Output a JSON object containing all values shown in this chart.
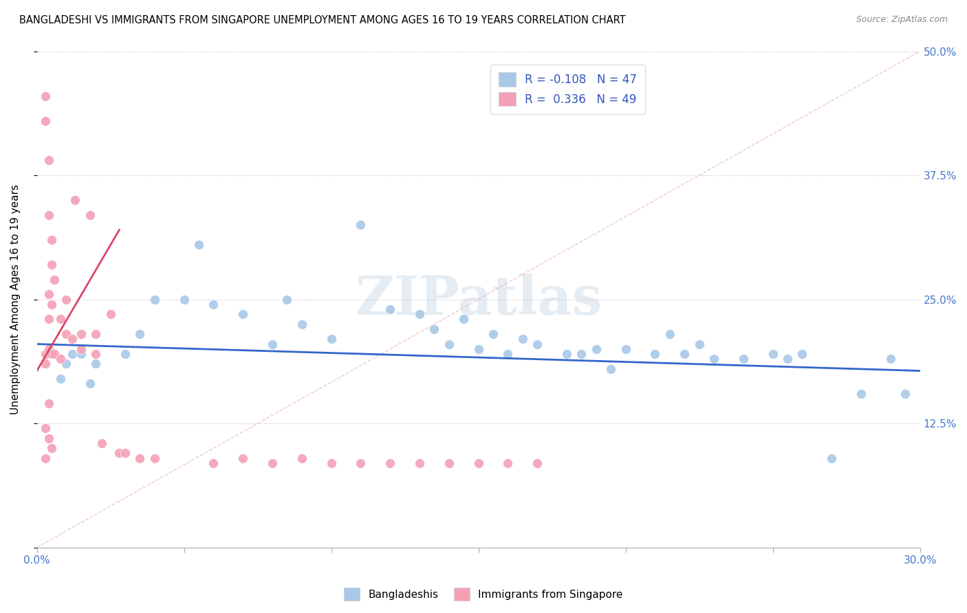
{
  "title": "BANGLADESHI VS IMMIGRANTS FROM SINGAPORE UNEMPLOYMENT AMONG AGES 16 TO 19 YEARS CORRELATION CHART",
  "source": "Source: ZipAtlas.com",
  "ylabel": "Unemployment Among Ages 16 to 19 years",
  "x_min": 0.0,
  "x_max": 0.3,
  "y_min": 0.0,
  "y_max": 0.5,
  "blue_R": -0.108,
  "blue_N": 47,
  "pink_R": 0.336,
  "pink_N": 49,
  "blue_color": "#a8c8e8",
  "pink_color": "#f4a0b5",
  "blue_line_color": "#3366cc",
  "pink_line_color": "#dd4466",
  "legend_label_blue": "Bangladeshis",
  "legend_label_pink": "Immigrants from Singapore",
  "watermark": "ZIPatlas",
  "blue_dots_x": [
    0.005,
    0.008,
    0.01,
    0.012,
    0.015,
    0.018,
    0.02,
    0.03,
    0.035,
    0.04,
    0.05,
    0.055,
    0.06,
    0.07,
    0.08,
    0.085,
    0.09,
    0.1,
    0.11,
    0.12,
    0.13,
    0.135,
    0.14,
    0.145,
    0.15,
    0.155,
    0.16,
    0.165,
    0.17,
    0.18,
    0.185,
    0.19,
    0.195,
    0.2,
    0.21,
    0.215,
    0.22,
    0.225,
    0.23,
    0.24,
    0.25,
    0.255,
    0.26,
    0.27,
    0.28,
    0.29,
    0.295
  ],
  "blue_dots_y": [
    0.195,
    0.17,
    0.185,
    0.195,
    0.195,
    0.165,
    0.185,
    0.195,
    0.215,
    0.25,
    0.25,
    0.305,
    0.245,
    0.235,
    0.205,
    0.25,
    0.225,
    0.21,
    0.325,
    0.24,
    0.235,
    0.22,
    0.205,
    0.23,
    0.2,
    0.215,
    0.195,
    0.21,
    0.205,
    0.195,
    0.195,
    0.2,
    0.18,
    0.2,
    0.195,
    0.215,
    0.195,
    0.205,
    0.19,
    0.19,
    0.195,
    0.19,
    0.195,
    0.09,
    0.155,
    0.19,
    0.155
  ],
  "pink_dots_x": [
    0.003,
    0.003,
    0.003,
    0.003,
    0.003,
    0.003,
    0.004,
    0.004,
    0.004,
    0.004,
    0.004,
    0.004,
    0.004,
    0.005,
    0.005,
    0.005,
    0.005,
    0.005,
    0.006,
    0.006,
    0.008,
    0.008,
    0.01,
    0.01,
    0.012,
    0.013,
    0.015,
    0.015,
    0.018,
    0.02,
    0.02,
    0.022,
    0.025,
    0.028,
    0.03,
    0.035,
    0.04,
    0.06,
    0.07,
    0.08,
    0.09,
    0.1,
    0.11,
    0.12,
    0.13,
    0.14,
    0.15,
    0.16,
    0.17
  ],
  "pink_dots_y": [
    0.455,
    0.43,
    0.195,
    0.185,
    0.12,
    0.09,
    0.39,
    0.335,
    0.255,
    0.23,
    0.2,
    0.145,
    0.11,
    0.31,
    0.285,
    0.245,
    0.195,
    0.1,
    0.27,
    0.195,
    0.23,
    0.19,
    0.25,
    0.215,
    0.21,
    0.35,
    0.215,
    0.2,
    0.335,
    0.215,
    0.195,
    0.105,
    0.235,
    0.095,
    0.095,
    0.09,
    0.09,
    0.085,
    0.09,
    0.085,
    0.09,
    0.085,
    0.085,
    0.085,
    0.085,
    0.085,
    0.085,
    0.085,
    0.085
  ]
}
